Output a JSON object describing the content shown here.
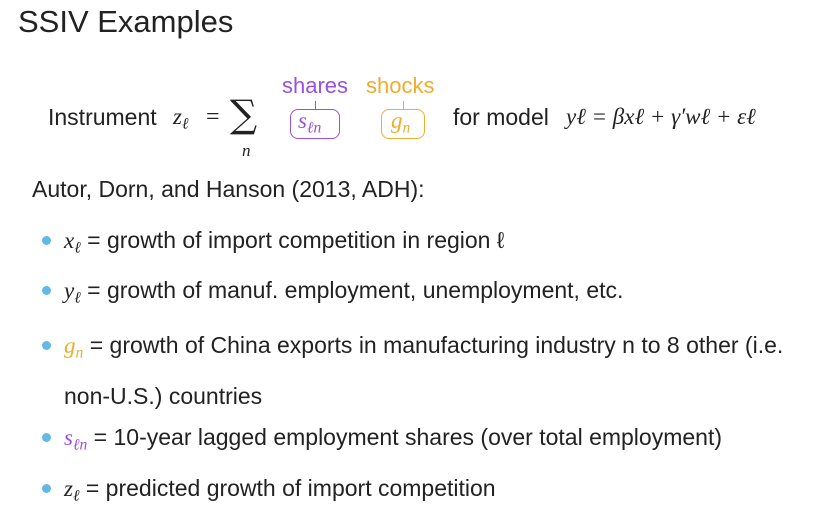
{
  "title": "SSIV Examples",
  "formula": {
    "shares_label": "shares",
    "shocks_label": "shocks",
    "lhs": "Instrument",
    "z": "z",
    "z_sub": "ℓ",
    "eq": "=",
    "sum": "∑",
    "sum_index": "n",
    "s": "s",
    "s_sub": "ℓn",
    "g": "g",
    "g_sub": "n",
    "for_model": "for model",
    "model": "yℓ = βxℓ + γ′wℓ + εℓ"
  },
  "intro": "Autor, Dorn, and Hanson (2013, ADH):",
  "bullets": [
    {
      "symbol": "x",
      "sub": "ℓ",
      "text": " = growth of import competition in region ℓ"
    },
    {
      "symbol": "y",
      "sub": "ℓ",
      "text": " = growth of manuf. employment, unemployment, etc."
    },
    {
      "symbol": "g",
      "sub": "n",
      "text": " = growth of China exports in manufacturing industry n to 8 other (i.e. non-U.S.) countries"
    },
    {
      "symbol": "s",
      "sub": "ℓn",
      "text": " = 10-year lagged employment shares (over total employment)"
    },
    {
      "symbol": "z",
      "sub": "ℓ",
      "text": " = predicted growth of import competition"
    }
  ]
}
